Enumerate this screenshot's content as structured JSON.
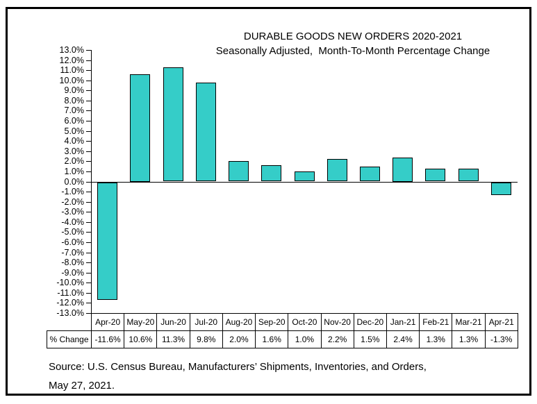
{
  "window": {
    "background_color": "#ffffff",
    "frame_border_color": "#000000"
  },
  "chart_data": {
    "type": "bar",
    "title": "DURABLE GOODS NEW ORDERS 2020-2021",
    "subtitle": "Seasonally Adjusted,  Month-To-Month Percentage Change",
    "categories": [
      "Apr-20",
      "May-20",
      "Jun-20",
      "Jul-20",
      "Aug-20",
      "Sep-20",
      "Oct-20",
      "Nov-20",
      "Dec-20",
      "Jan-21",
      "Feb-21",
      "Mar-21",
      "Apr-21"
    ],
    "series": [
      {
        "name": "% Change",
        "values": [
          -11.6,
          10.6,
          11.3,
          9.8,
          2.0,
          1.6,
          1.0,
          2.2,
          1.5,
          2.4,
          1.3,
          1.3,
          -1.3
        ],
        "value_labels": [
          "-11.6%",
          "10.6%",
          "11.3%",
          "9.8%",
          "2.0%",
          "1.6%",
          "1.0%",
          "2.2%",
          "1.5%",
          "2.4%",
          "1.3%",
          "1.3%",
          "-1.3%"
        ]
      }
    ],
    "y_axis": {
      "min": -13,
      "max": 13,
      "step": 1,
      "tick_labels": [
        "13.0%",
        "12.0%",
        "11.0%",
        "10.0%",
        "9.0%",
        "8.0%",
        "7.0%",
        "6.0%",
        "5.0%",
        "4.0%",
        "3.0%",
        "2.0%",
        "1.0%",
        "0.0%",
        "-1.0%",
        "-2.0%",
        "-3.0%",
        "-4.0%",
        "-5.0%",
        "-6.0%",
        "-7.0%",
        "-8.0%",
        "-9.0%",
        "-10.0%",
        "-11.0%",
        "-12.0%",
        "-13.0%"
      ]
    },
    "bar_color": "#35CDC8",
    "bar_border_color": "#000000",
    "grid": false,
    "legend_position": "none",
    "data_table_shown": true
  },
  "source_note": {
    "line1": "Source: U.S. Census Bureau, Manufacturers’ Shipments, Inventories, and Orders,",
    "line2": "May 27, 2021."
  }
}
